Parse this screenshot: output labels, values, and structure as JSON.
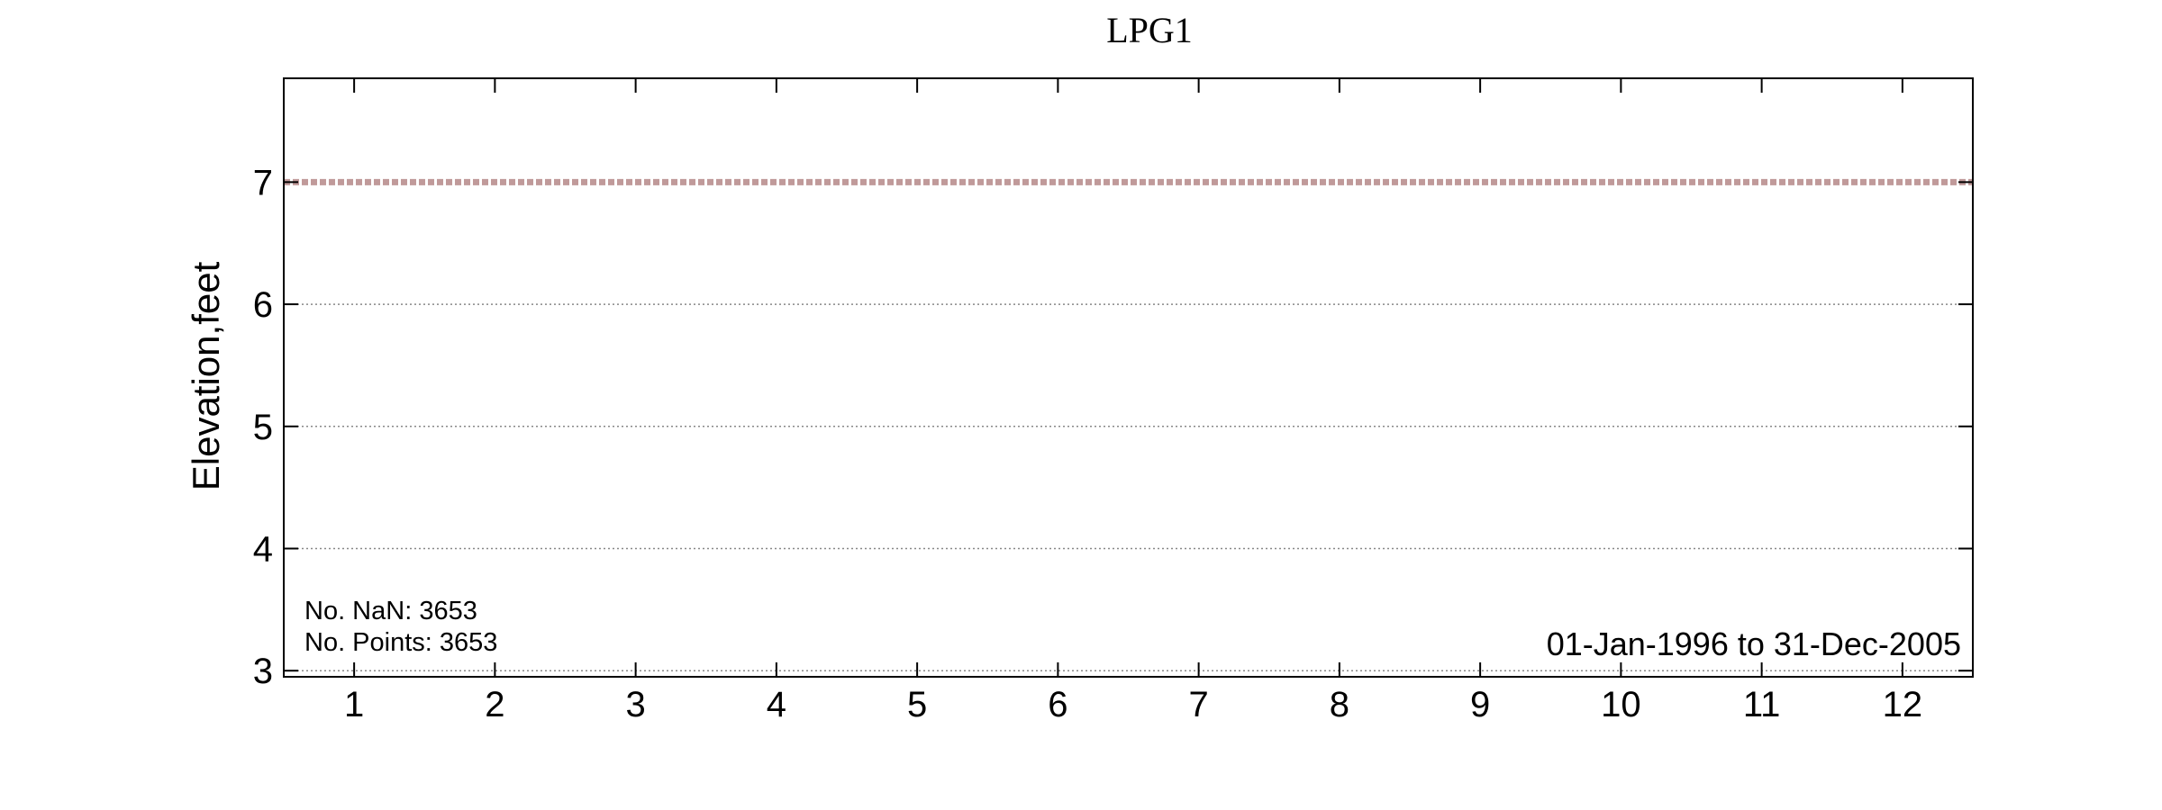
{
  "chart_data": {
    "type": "line",
    "title": "LPG1",
    "xlabel": "",
    "ylabel": "Elevation,feet",
    "x_ticks": [
      1,
      2,
      3,
      4,
      5,
      6,
      7,
      8,
      9,
      10,
      11,
      12
    ],
    "y_ticks": [
      3,
      4,
      5,
      6,
      7
    ],
    "xlim": [
      0.5,
      12.5
    ],
    "ylim": [
      2.95,
      7.85
    ],
    "grid": "horizontal-dotted",
    "series": [
      {
        "x": [
          0.5,
          12.5
        ],
        "values": [
          7,
          7
        ],
        "color": "#c09a9a",
        "style": "dashed"
      }
    ],
    "annotations": {
      "nan_count": "No. NaN: 3653",
      "point_count": "No. Points: 3653",
      "date_range": "01-Jan-1996 to 31-Dec-2005"
    }
  }
}
